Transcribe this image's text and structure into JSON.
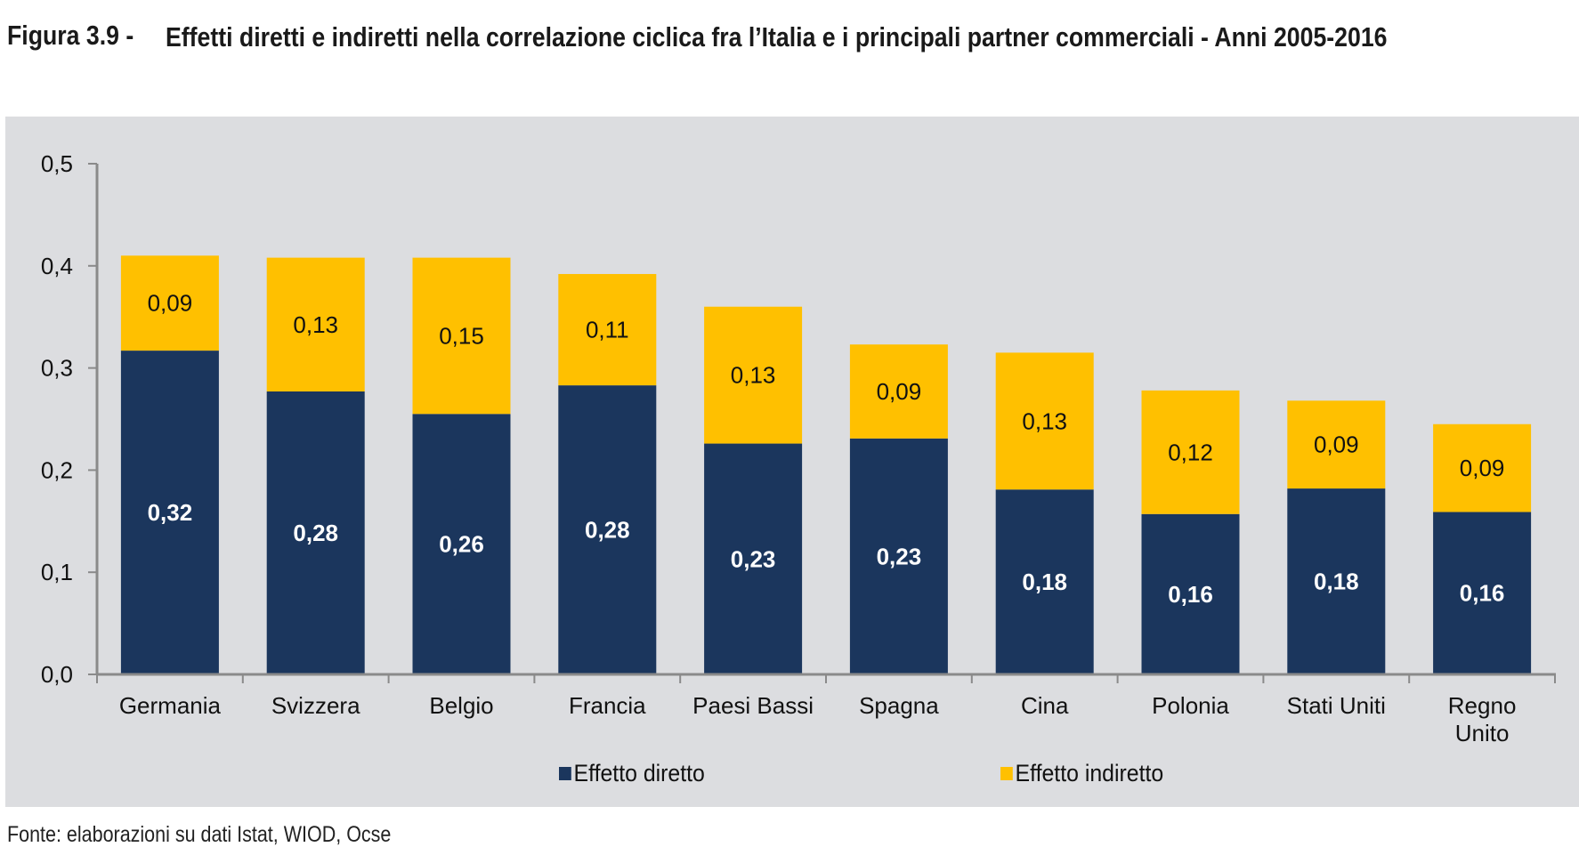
{
  "figure": {
    "label": "Figura 3.9 -",
    "title": "Effetti diretti e indiretti nella correlazione ciclica fra l’Italia e i principali partner commerciali - Anni 2005-2016",
    "source": "Fonte: elaborazioni su dati Istat, WIOD, Ocse"
  },
  "colors": {
    "direct": "#1b365d",
    "indirect": "#ffc000",
    "panel": "#dcdde0",
    "axis": "#8a8a8a"
  },
  "chart_data": {
    "type": "bar",
    "stacked": true,
    "title": "Effetti diretti e indiretti nella correlazione ciclica fra l’Italia e i principali partner commerciali - Anni 2005-2016",
    "xlabel": "",
    "ylabel": "",
    "ylim": [
      0,
      0.5
    ],
    "yticks": [
      0.0,
      0.1,
      0.2,
      0.3,
      0.4,
      0.5
    ],
    "ytick_labels": [
      "0,0",
      "0,1",
      "0,2",
      "0,3",
      "0,4",
      "0,5"
    ],
    "grid": false,
    "legend_position": "bottom",
    "categories": [
      "Germania",
      "Svizzera",
      "Belgio",
      "Francia",
      "Paesi Bassi",
      "Spagna",
      "Cina",
      "Polonia",
      "Stati Uniti",
      "Regno Unito"
    ],
    "category_lines": [
      [
        "Germania"
      ],
      [
        "Svizzera"
      ],
      [
        "Belgio"
      ],
      [
        "Francia"
      ],
      [
        "Paesi Bassi"
      ],
      [
        "Spagna"
      ],
      [
        "Cina"
      ],
      [
        "Polonia"
      ],
      [
        "Stati Uniti"
      ],
      [
        "Regno",
        "Unito"
      ]
    ],
    "series": [
      {
        "name": "Effetto diretto",
        "values": [
          0.317,
          0.277,
          0.255,
          0.283,
          0.226,
          0.231,
          0.181,
          0.157,
          0.182,
          0.159
        ],
        "labels": [
          "0,32",
          "0,28",
          "0,26",
          "0,28",
          "0,23",
          "0,23",
          "0,18",
          "0,16",
          "0,18",
          "0,16"
        ]
      },
      {
        "name": "Effetto indiretto",
        "values": [
          0.093,
          0.131,
          0.153,
          0.109,
          0.134,
          0.092,
          0.134,
          0.121,
          0.086,
          0.086
        ],
        "labels": [
          "0,09",
          "0,13",
          "0,15",
          "0,11",
          "0,13",
          "0,09",
          "0,13",
          "0,12",
          "0,09",
          "0,09"
        ]
      }
    ]
  }
}
